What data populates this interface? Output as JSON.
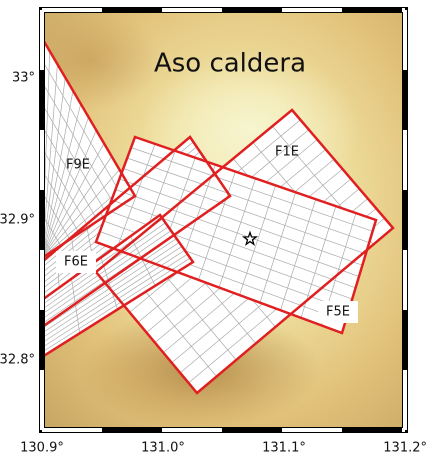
{
  "map": {
    "title": "Aso caldera",
    "y_tick_labels": [
      "33°",
      "32.9°",
      "32.8°"
    ],
    "x_tick_labels": [
      "130.9°",
      "131.0°",
      "131.1°",
      "131.2°"
    ],
    "faults": [
      {
        "label": "F9E"
      },
      {
        "label": "F1E"
      },
      {
        "label": "F6E"
      },
      {
        "label": "F5E"
      }
    ]
  }
}
